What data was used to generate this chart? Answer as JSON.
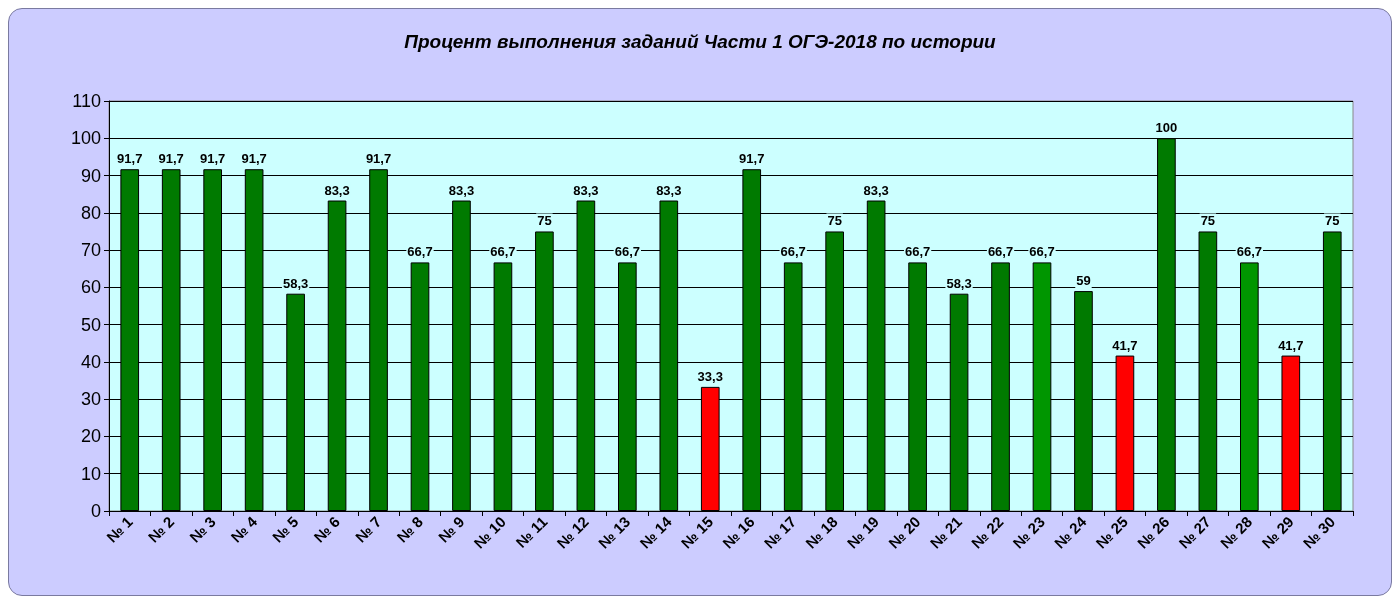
{
  "chart_data": {
    "type": "bar",
    "title": "Процент выполнения заданий Части 1 ОГЭ-2018 по истории",
    "categories": [
      "№ 1",
      "№ 2",
      "№ 3",
      "№ 4",
      "№ 5",
      "№ 6",
      "№ 7",
      "№ 8",
      "№ 9",
      "№ 10",
      "№ 11",
      "№ 12",
      "№ 13",
      "№ 14",
      "№ 15",
      "№ 16",
      "№ 17",
      "№ 18",
      "№ 19",
      "№ 20",
      "№ 21",
      "№ 22",
      "№ 23",
      "№ 24",
      "№ 25",
      "№ 26",
      "№ 27",
      "№ 28",
      "№ 29",
      "№ 30"
    ],
    "values": [
      91.7,
      91.7,
      91.7,
      91.7,
      58.3,
      83.3,
      91.7,
      66.7,
      83.3,
      66.7,
      75,
      83.3,
      66.7,
      83.3,
      33.3,
      91.7,
      66.7,
      75,
      83.3,
      66.7,
      58.3,
      66.7,
      66.7,
      59,
      41.7,
      100,
      75,
      66.7,
      41.7,
      75
    ],
    "value_labels": [
      "91,7",
      "91,7",
      "91,7",
      "91,7",
      "58,3",
      "83,3",
      "91,7",
      "66,7",
      "83,3",
      "66,7",
      "75",
      "83,3",
      "66,7",
      "83,3",
      "33,3",
      "91,7",
      "66,7",
      "75",
      "83,3",
      "66,7",
      "58,3",
      "66,7",
      "66,7",
      "59",
      "41,7",
      "100",
      "75",
      "66,7",
      "41,7",
      "75"
    ],
    "colors": [
      "#007a00",
      "#007a00",
      "#007a00",
      "#007a00",
      "#007a00",
      "#007a00",
      "#007a00",
      "#007a00",
      "#007a00",
      "#007a00",
      "#007a00",
      "#007a00",
      "#007a00",
      "#007a00",
      "#ff0000",
      "#007a00",
      "#007a00",
      "#007a00",
      "#007a00",
      "#007a00",
      "#007a00",
      "#007a00",
      "#009600",
      "#007a00",
      "#ff0000",
      "#007a00",
      "#007a00",
      "#009600",
      "#ff0000",
      "#007a00"
    ],
    "ylim": [
      0,
      110
    ],
    "yticks": [
      0,
      10,
      20,
      30,
      40,
      50,
      60,
      70,
      80,
      90,
      100,
      110
    ],
    "grid": "y"
  }
}
